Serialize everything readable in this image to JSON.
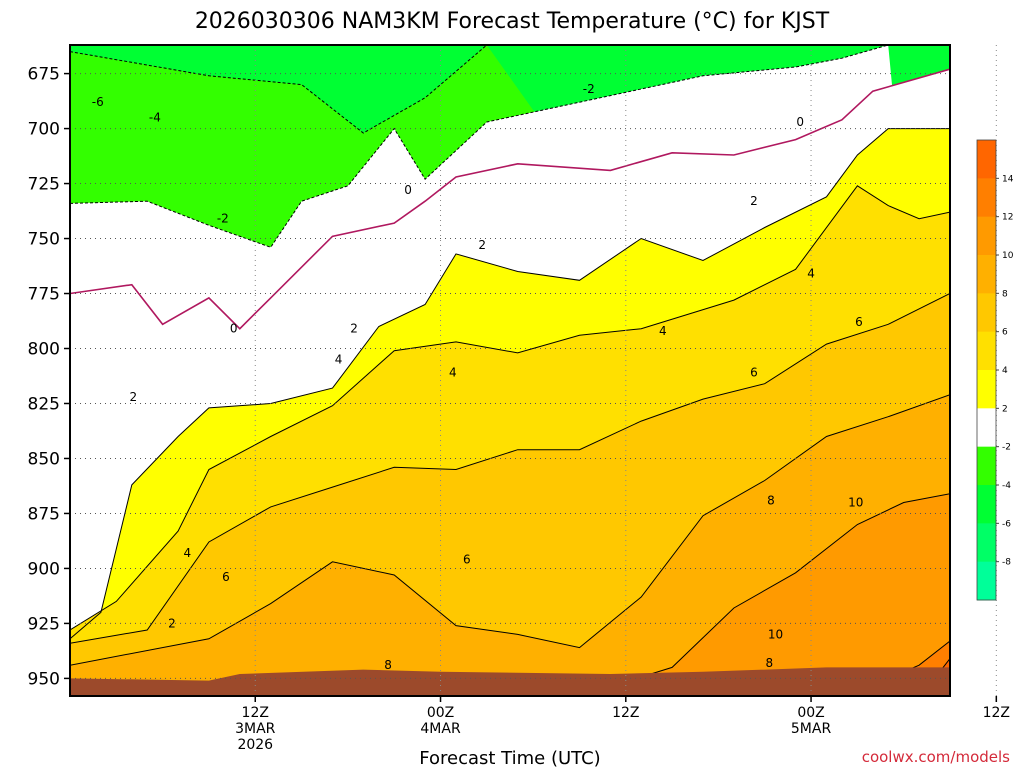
{
  "title": "2026030306 NAM3KM Forecast Temperature (°C) for KJST",
  "credit": "coolwx.com/models",
  "colors": {
    "frame": "#000000",
    "ground": "#9c4a2b",
    "zero_line": "#b0185f",
    "contour_line": "#000000",
    "credit_text": "#d42a3a"
  },
  "chart_data": {
    "type": "heatmap",
    "title": "2026030306 NAM3KM Forecast Temperature (°C) for KJST",
    "xlabel": "Forecast Time (UTC)",
    "ylabel": "",
    "yscale": "pressure (inverted, hPa)",
    "ylim": [
      662,
      958
    ],
    "xlim": [
      -9,
      48
    ],
    "y_ticks": [
      "675",
      "700",
      "725",
      "750",
      "775",
      "800",
      "825",
      "850",
      "875",
      "900",
      "925",
      "950"
    ],
    "x_ticks": [
      {
        "line1": "12Z",
        "line2": "3MAR",
        "line3": "2026"
      },
      {
        "line1": "00Z",
        "line2": "4MAR",
        "line3": ""
      },
      {
        "line1": "12Z",
        "line2": "",
        "line3": ""
      },
      {
        "line1": "00Z",
        "line2": "5MAR",
        "line3": ""
      },
      {
        "line1": "12Z",
        "line2": "",
        "line3": ""
      }
    ],
    "x_tick_hours": [
      3,
      15,
      27,
      39,
      51
    ],
    "grid": true,
    "colorbar": {
      "ticks": [
        "14",
        "12",
        "10",
        "8",
        "6",
        "4",
        "2",
        "-2",
        "-4",
        "-6",
        "-8"
      ],
      "bins": [
        {
          "range": [
            14,
            16
          ],
          "color": "#ff6600"
        },
        {
          "range": [
            12,
            14
          ],
          "color": "#ff7f00"
        },
        {
          "range": [
            10,
            12
          ],
          "color": "#ff9a00"
        },
        {
          "range": [
            8,
            10
          ],
          "color": "#ffb000"
        },
        {
          "range": [
            6,
            8
          ],
          "color": "#ffc800"
        },
        {
          "range": [
            4,
            6
          ],
          "color": "#ffe000"
        },
        {
          "range": [
            2,
            4
          ],
          "color": "#ffff00"
        },
        {
          "range": [
            -2,
            2
          ],
          "color": "#ffffff"
        },
        {
          "range": [
            -4,
            -2
          ],
          "color": "#33ff00"
        },
        {
          "range": [
            -6,
            -4
          ],
          "color": "#00ff33"
        },
        {
          "range": [
            -8,
            -6
          ],
          "color": "#00ff66"
        },
        {
          "range": [
            -10,
            -8
          ],
          "color": "#00ff99"
        }
      ]
    },
    "boundaries": [
      {
        "level": -4,
        "points": [
          [
            -9,
            665
          ],
          [
            0,
            676
          ],
          [
            6,
            680
          ],
          [
            10,
            702
          ],
          [
            14,
            686
          ],
          [
            18,
            662
          ]
        ]
      },
      {
        "level": -2,
        "points": [
          [
            -9,
            734
          ],
          [
            -4,
            733
          ],
          [
            0,
            744
          ],
          [
            4,
            754
          ],
          [
            6,
            733
          ],
          [
            9,
            726
          ],
          [
            12,
            700
          ],
          [
            14,
            723
          ],
          [
            18,
            697
          ],
          [
            24,
            688
          ],
          [
            32,
            676
          ],
          [
            38,
            672
          ],
          [
            41,
            668
          ],
          [
            44,
            662
          ]
        ]
      },
      {
        "level": 0,
        "points": [
          [
            -9,
            775
          ],
          [
            -5,
            771
          ],
          [
            -3,
            789
          ],
          [
            0,
            777
          ],
          [
            2,
            791
          ],
          [
            4,
            777
          ],
          [
            8,
            749
          ],
          [
            12,
            743
          ],
          [
            14,
            733
          ],
          [
            16,
            722
          ],
          [
            20,
            716
          ],
          [
            26,
            719
          ],
          [
            30,
            711
          ],
          [
            34,
            712
          ],
          [
            38,
            705
          ],
          [
            41,
            696
          ],
          [
            43,
            683
          ],
          [
            48,
            673
          ]
        ]
      },
      {
        "level": 2,
        "points": [
          [
            -9,
            932
          ],
          [
            -7,
            920
          ],
          [
            -5,
            862
          ],
          [
            -2,
            840
          ],
          [
            0,
            827
          ],
          [
            4,
            825
          ],
          [
            8,
            818
          ],
          [
            11,
            790
          ],
          [
            14,
            780
          ],
          [
            16,
            757
          ],
          [
            20,
            765
          ],
          [
            24,
            769
          ],
          [
            28,
            750
          ],
          [
            32,
            760
          ],
          [
            36,
            745
          ],
          [
            40,
            731
          ],
          [
            42,
            712
          ],
          [
            44,
            700
          ],
          [
            48,
            700
          ]
        ]
      },
      {
        "level": 4,
        "points": [
          [
            -9,
            928
          ],
          [
            -6,
            915
          ],
          [
            -2,
            883
          ],
          [
            0,
            855
          ],
          [
            4,
            840
          ],
          [
            8,
            826
          ],
          [
            12,
            801
          ],
          [
            16,
            797
          ],
          [
            20,
            802
          ],
          [
            24,
            794
          ],
          [
            28,
            791
          ],
          [
            34,
            778
          ],
          [
            38,
            764
          ],
          [
            42,
            726
          ],
          [
            44,
            735
          ],
          [
            46,
            741
          ],
          [
            48,
            738
          ]
        ]
      },
      {
        "level": 6,
        "points": [
          [
            -9,
            934
          ],
          [
            -4,
            928
          ],
          [
            0,
            888
          ],
          [
            4,
            872
          ],
          [
            8,
            863
          ],
          [
            12,
            854
          ],
          [
            16,
            855
          ],
          [
            20,
            846
          ],
          [
            24,
            846
          ],
          [
            28,
            833
          ],
          [
            32,
            823
          ],
          [
            36,
            816
          ],
          [
            40,
            798
          ],
          [
            44,
            789
          ],
          [
            48,
            775
          ]
        ]
      },
      {
        "level": 8,
        "points": [
          [
            -9,
            944
          ],
          [
            0,
            932
          ],
          [
            4,
            916
          ],
          [
            8,
            897
          ],
          [
            12,
            903
          ],
          [
            16,
            926
          ],
          [
            20,
            930
          ],
          [
            24,
            936
          ],
          [
            28,
            913
          ],
          [
            32,
            876
          ],
          [
            36,
            860
          ],
          [
            40,
            840
          ],
          [
            44,
            831
          ],
          [
            48,
            821
          ]
        ]
      },
      {
        "level": 10,
        "points": [
          [
            -9,
            958
          ],
          [
            0,
            958
          ],
          [
            8,
            958
          ],
          [
            16,
            958
          ],
          [
            24,
            958
          ],
          [
            30,
            945
          ],
          [
            34,
            918
          ],
          [
            38,
            902
          ],
          [
            42,
            880
          ],
          [
            45,
            870
          ],
          [
            48,
            866
          ]
        ]
      },
      {
        "level": 12,
        "points": [
          [
            -9,
            958
          ],
          [
            24,
            958
          ],
          [
            36,
            958
          ],
          [
            42,
            958
          ],
          [
            44,
            950
          ],
          [
            46,
            944
          ],
          [
            48,
            933
          ]
        ]
      },
      {
        "level": 14,
        "points": [
          [
            -9,
            958
          ],
          [
            42,
            958
          ],
          [
            46,
            958
          ],
          [
            47,
            950
          ],
          [
            48,
            941
          ]
        ]
      }
    ],
    "ground": [
      [
        -9,
        950
      ],
      [
        0,
        951
      ],
      [
        2,
        948
      ],
      [
        10,
        946
      ],
      [
        15,
        947
      ],
      [
        26,
        948
      ],
      [
        32,
        947
      ],
      [
        40,
        945
      ],
      [
        48,
        945
      ]
    ],
    "contour_labels": [
      {
        "text": "-6",
        "x": -7.2,
        "y": 688
      },
      {
        "text": "-4",
        "x": -3.5,
        "y": 695
      },
      {
        "text": "-2",
        "x": 0.9,
        "y": 741
      },
      {
        "text": "-2",
        "x": 24.6,
        "y": 682
      },
      {
        "text": "0",
        "x": 1.6,
        "y": 791
      },
      {
        "text": "0",
        "x": 12.9,
        "y": 728
      },
      {
        "text": "0",
        "x": 38.3,
        "y": 697
      },
      {
        "text": "2",
        "x": -4.9,
        "y": 822
      },
      {
        "text": "2",
        "x": 9.4,
        "y": 791
      },
      {
        "text": "2",
        "x": 17.7,
        "y": 753
      },
      {
        "text": "2",
        "x": 35.3,
        "y": 733
      },
      {
        "text": "2",
        "x": -2.4,
        "y": 925
      },
      {
        "text": "4",
        "x": -1.4,
        "y": 893
      },
      {
        "text": "4",
        "x": 8.4,
        "y": 805
      },
      {
        "text": "4",
        "x": 15.8,
        "y": 811
      },
      {
        "text": "4",
        "x": 29.4,
        "y": 792
      },
      {
        "text": "4",
        "x": 39.0,
        "y": 766
      },
      {
        "text": "6",
        "x": 1.1,
        "y": 904
      },
      {
        "text": "6",
        "x": 16.7,
        "y": 896
      },
      {
        "text": "6",
        "x": 35.3,
        "y": 811
      },
      {
        "text": "6",
        "x": 42.1,
        "y": 788
      },
      {
        "text": "8",
        "x": 11.6,
        "y": 944
      },
      {
        "text": "8",
        "x": 36.3,
        "y": 943
      },
      {
        "text": "8",
        "x": 36.4,
        "y": 869
      },
      {
        "text": "10",
        "x": 36.7,
        "y": 930
      },
      {
        "text": "10",
        "x": 41.9,
        "y": 870
      }
    ]
  }
}
